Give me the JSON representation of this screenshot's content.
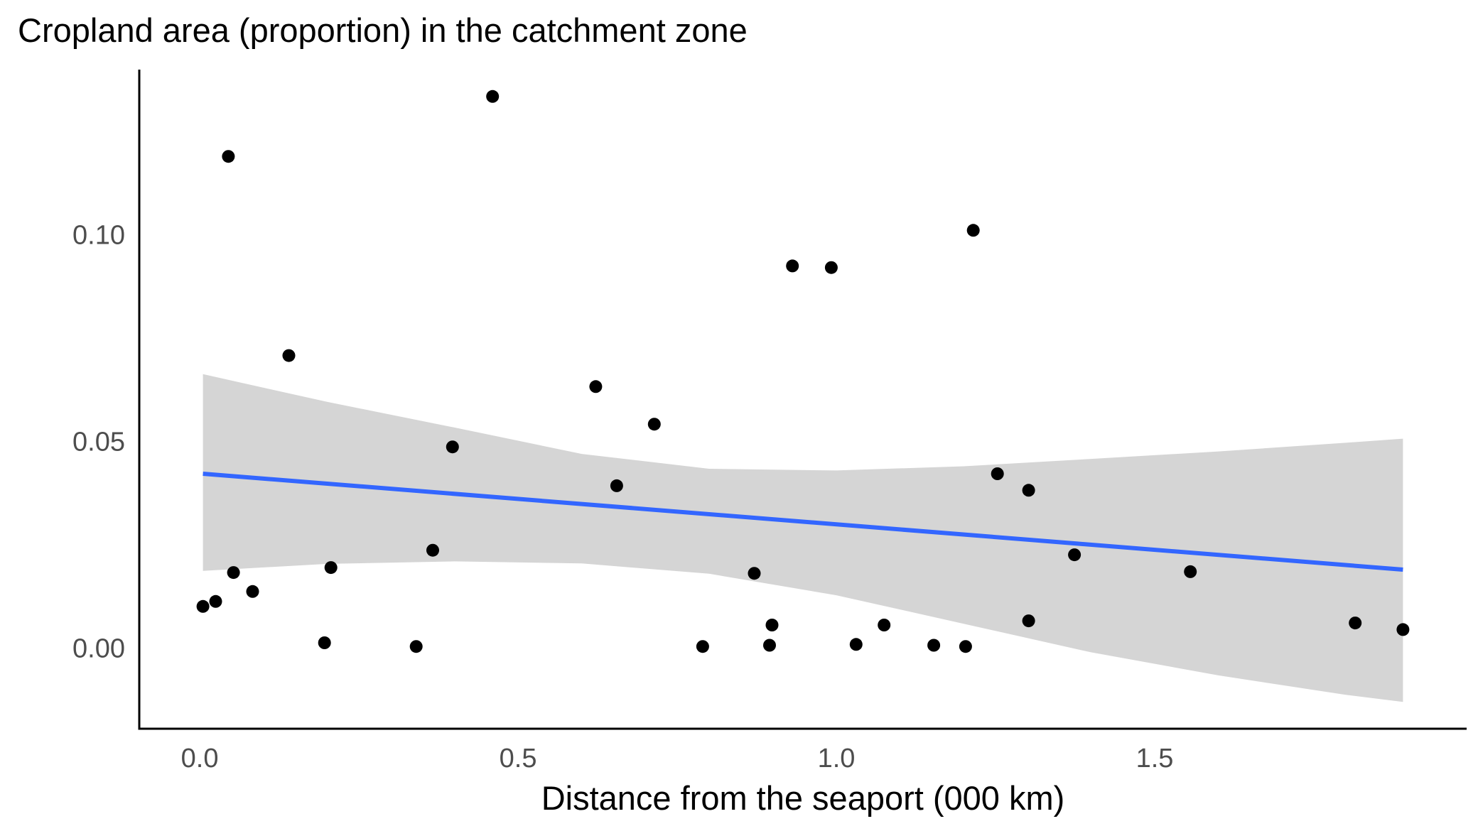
{
  "chart_data": {
    "type": "scatter",
    "title": "Cropland area (proportion) in the catchment zone",
    "xlabel": "Distance from the seaport (000 km)",
    "ylabel": "",
    "xlim": [
      -0.095,
      1.99
    ],
    "ylim": [
      -0.0195,
      0.14
    ],
    "x_ticks": [
      0.0,
      0.5,
      1.0,
      1.5
    ],
    "x_tick_labels": [
      "0.0",
      "0.5",
      "1.0",
      "1.5"
    ],
    "y_ticks": [
      0.0,
      0.05,
      0.1
    ],
    "y_tick_labels": [
      "0.00",
      "0.05",
      "0.10"
    ],
    "grid": false,
    "colors": {
      "points": "#000000",
      "fit_line": "#3366ff",
      "confidence_band": "#d5d5d5"
    },
    "points": [
      {
        "x": 0.005,
        "y": 0.0101
      },
      {
        "x": 0.025,
        "y": 0.0113
      },
      {
        "x": 0.045,
        "y": 0.119
      },
      {
        "x": 0.053,
        "y": 0.0183
      },
      {
        "x": 0.083,
        "y": 0.0137
      },
      {
        "x": 0.14,
        "y": 0.0708
      },
      {
        "x": 0.196,
        "y": 0.0013
      },
      {
        "x": 0.206,
        "y": 0.0195
      },
      {
        "x": 0.34,
        "y": 0.0004
      },
      {
        "x": 0.366,
        "y": 0.0237
      },
      {
        "x": 0.397,
        "y": 0.0487
      },
      {
        "x": 0.46,
        "y": 0.1335
      },
      {
        "x": 0.622,
        "y": 0.0633
      },
      {
        "x": 0.655,
        "y": 0.0393
      },
      {
        "x": 0.714,
        "y": 0.0542
      },
      {
        "x": 0.79,
        "y": 0.0004
      },
      {
        "x": 0.871,
        "y": 0.0181
      },
      {
        "x": 0.895,
        "y": 0.0007
      },
      {
        "x": 0.899,
        "y": 0.0056
      },
      {
        "x": 0.931,
        "y": 0.0925
      },
      {
        "x": 0.992,
        "y": 0.0921
      },
      {
        "x": 1.031,
        "y": 0.0009
      },
      {
        "x": 1.075,
        "y": 0.0056
      },
      {
        "x": 1.153,
        "y": 0.0007
      },
      {
        "x": 1.203,
        "y": 0.0004
      },
      {
        "x": 1.215,
        "y": 0.1011
      },
      {
        "x": 1.253,
        "y": 0.0422
      },
      {
        "x": 1.302,
        "y": 0.0382
      },
      {
        "x": 1.302,
        "y": 0.0066
      },
      {
        "x": 1.374,
        "y": 0.0226
      },
      {
        "x": 1.556,
        "y": 0.0185
      },
      {
        "x": 1.815,
        "y": 0.0061
      },
      {
        "x": 1.89,
        "y": 0.0045
      }
    ],
    "fit": {
      "method": "linear",
      "x": [
        0.005,
        1.89
      ],
      "y": [
        0.0422,
        0.019
      ]
    },
    "confidence_band": {
      "x": [
        0.005,
        0.2,
        0.4,
        0.6,
        0.8,
        1.0,
        1.2,
        1.4,
        1.6,
        1.8,
        1.89
      ],
      "lower": [
        0.0187,
        0.0204,
        0.021,
        0.0205,
        0.018,
        0.0128,
        0.0059,
        -0.001,
        -0.0066,
        -0.0113,
        -0.013
      ],
      "upper": [
        0.0663,
        0.0596,
        0.0534,
        0.047,
        0.0434,
        0.043,
        0.044,
        0.0458,
        0.0476,
        0.0497,
        0.0507
      ]
    }
  }
}
